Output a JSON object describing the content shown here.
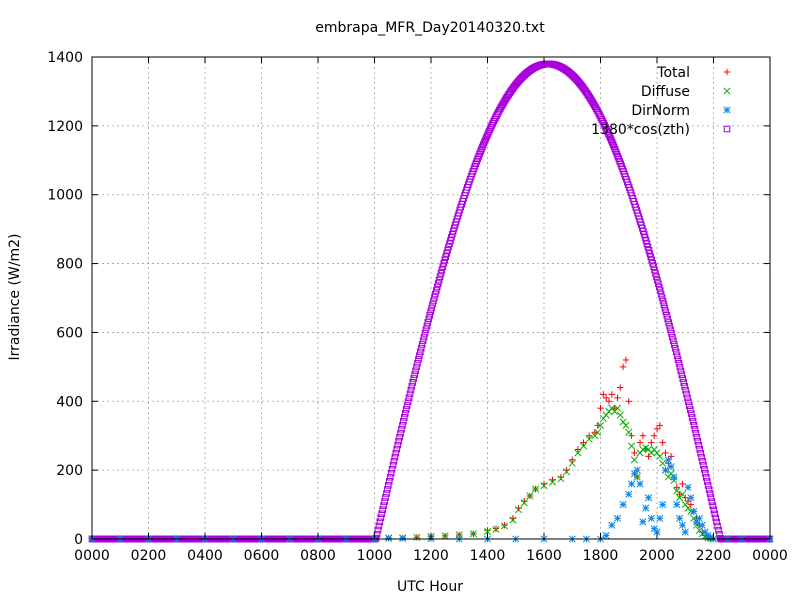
{
  "chart_data": {
    "type": "scatter",
    "title": "embrapa_MFR_Day20140320.txt",
    "xlabel": "UTC Hour",
    "ylabel": "Irradiance (W/m2)",
    "xlim": [
      0,
      24
    ],
    "ylim": [
      0,
      1400
    ],
    "grid": true,
    "legend_position": "top-right",
    "x_ticks": [
      {
        "v": 0,
        "label": "0000"
      },
      {
        "v": 2,
        "label": "0200"
      },
      {
        "v": 4,
        "label": "0400"
      },
      {
        "v": 6,
        "label": "0600"
      },
      {
        "v": 8,
        "label": "0800"
      },
      {
        "v": 10,
        "label": "1000"
      },
      {
        "v": 12,
        "label": "1200"
      },
      {
        "v": 14,
        "label": "1400"
      },
      {
        "v": 16,
        "label": "1600"
      },
      {
        "v": 18,
        "label": "1800"
      },
      {
        "v": 20,
        "label": "2000"
      },
      {
        "v": 22,
        "label": "2200"
      },
      {
        "v": 24,
        "label": "0000"
      }
    ],
    "y_ticks": [
      0,
      200,
      400,
      600,
      800,
      1000,
      1200,
      1400
    ],
    "series": [
      {
        "name": "Total",
        "color": "#ff0000",
        "marker": "plus",
        "x": [
          0,
          1,
          2,
          3,
          4,
          5,
          6,
          7,
          8,
          9,
          10,
          10.5,
          11,
          11.5,
          12,
          12.5,
          13,
          13.5,
          14,
          14.3,
          14.6,
          14.9,
          15.1,
          15.3,
          15.5,
          15.7,
          16,
          16.3,
          16.6,
          16.8,
          17,
          17.2,
          17.4,
          17.6,
          17.8,
          17.9,
          18,
          18.1,
          18.2,
          18.3,
          18.4,
          18.5,
          18.6,
          18.7,
          18.8,
          18.9,
          19,
          19.1,
          19.2,
          19.3,
          19.4,
          19.5,
          19.6,
          19.7,
          19.8,
          19.9,
          20,
          20.1,
          20.2,
          20.3,
          20.4,
          20.5,
          20.6,
          20.7,
          20.8,
          20.9,
          21,
          21.1,
          21.2,
          21.3,
          21.4,
          21.5,
          21.6,
          21.7,
          21.8,
          21.9,
          22,
          22.5,
          23,
          24
        ],
        "y": [
          0,
          0,
          0,
          0,
          0,
          0,
          0,
          0,
          0,
          0,
          0,
          2,
          3,
          5,
          7,
          9,
          12,
          15,
          25,
          30,
          40,
          60,
          90,
          110,
          125,
          145,
          160,
          172,
          180,
          200,
          230,
          260,
          280,
          300,
          310,
          330,
          380,
          420,
          410,
          400,
          420,
          380,
          410,
          440,
          500,
          520,
          400,
          300,
          250,
          180,
          280,
          300,
          260,
          240,
          280,
          300,
          320,
          330,
          280,
          250,
          220,
          240,
          180,
          150,
          130,
          160,
          120,
          110,
          100,
          80,
          60,
          40,
          20,
          10,
          5,
          2,
          0,
          0,
          0,
          0
        ]
      },
      {
        "name": "Diffuse",
        "color": "#00b000",
        "marker": "cross",
        "x": [
          0,
          1,
          2,
          3,
          4,
          5,
          6,
          7,
          8,
          9,
          10,
          10.5,
          11,
          11.5,
          12,
          12.5,
          13,
          13.5,
          14,
          14.3,
          14.6,
          14.9,
          15.1,
          15.3,
          15.5,
          15.7,
          16,
          16.3,
          16.6,
          16.8,
          17,
          17.2,
          17.4,
          17.6,
          17.8,
          17.9,
          18,
          18.1,
          18.2,
          18.3,
          18.4,
          18.5,
          18.6,
          18.7,
          18.8,
          18.9,
          19,
          19.1,
          19.2,
          19.3,
          19.4,
          19.5,
          19.6,
          19.7,
          19.8,
          19.9,
          20,
          20.1,
          20.2,
          20.3,
          20.4,
          20.5,
          20.6,
          20.7,
          20.8,
          20.9,
          21,
          21.1,
          21.2,
          21.3,
          21.4,
          21.5,
          21.6,
          21.7,
          21.8,
          21.9,
          22,
          22.5,
          23,
          24
        ],
        "y": [
          0,
          0,
          0,
          0,
          0,
          0,
          0,
          0,
          0,
          0,
          0,
          2,
          3,
          5,
          7,
          9,
          12,
          15,
          22,
          28,
          38,
          55,
          85,
          105,
          125,
          145,
          155,
          165,
          175,
          195,
          220,
          250,
          270,
          290,
          300,
          310,
          330,
          350,
          360,
          370,
          380,
          370,
          380,
          360,
          340,
          330,
          310,
          270,
          230,
          180,
          250,
          260,
          265,
          260,
          250,
          260,
          250,
          240,
          220,
          200,
          180,
          190,
          170,
          140,
          120,
          130,
          100,
          90,
          80,
          60,
          40,
          25,
          15,
          8,
          3,
          1,
          0,
          0,
          0,
          0
        ]
      },
      {
        "name": "DirNorm",
        "color": "#0088ee",
        "marker": "star",
        "x": [
          0,
          1,
          2,
          3,
          4,
          5,
          6,
          7,
          8,
          9,
          10,
          10.5,
          11,
          12,
          13,
          14,
          15,
          16,
          17,
          17.5,
          18,
          18.2,
          18.4,
          18.6,
          18.8,
          19,
          19.1,
          19.2,
          19.3,
          19.4,
          19.5,
          19.6,
          19.7,
          19.8,
          19.9,
          20,
          20.1,
          20.2,
          20.3,
          20.4,
          20.5,
          20.6,
          20.7,
          20.8,
          20.9,
          21,
          21.1,
          21.2,
          21.3,
          21.4,
          21.5,
          21.6,
          21.7,
          21.8,
          21.9,
          22,
          22.5,
          23,
          24
        ],
        "y": [
          0,
          0,
          0,
          0,
          0,
          0,
          0,
          0,
          0,
          0,
          0,
          3,
          2,
          1,
          0,
          0,
          0,
          0,
          0,
          0,
          0,
          10,
          40,
          60,
          100,
          130,
          160,
          190,
          200,
          160,
          50,
          90,
          120,
          60,
          30,
          20,
          60,
          100,
          200,
          230,
          210,
          180,
          100,
          60,
          40,
          20,
          150,
          120,
          80,
          50,
          60,
          40,
          20,
          10,
          5,
          0,
          0,
          0,
          0
        ]
      },
      {
        "name": "1380*cos(zth)",
        "color": "#aa00dd",
        "marker": "square",
        "model": {
          "peak": 1380,
          "peak_hour": 16.15,
          "sunrise_hour": 10.05,
          "sunset_hour": 22.25
        }
      }
    ]
  }
}
